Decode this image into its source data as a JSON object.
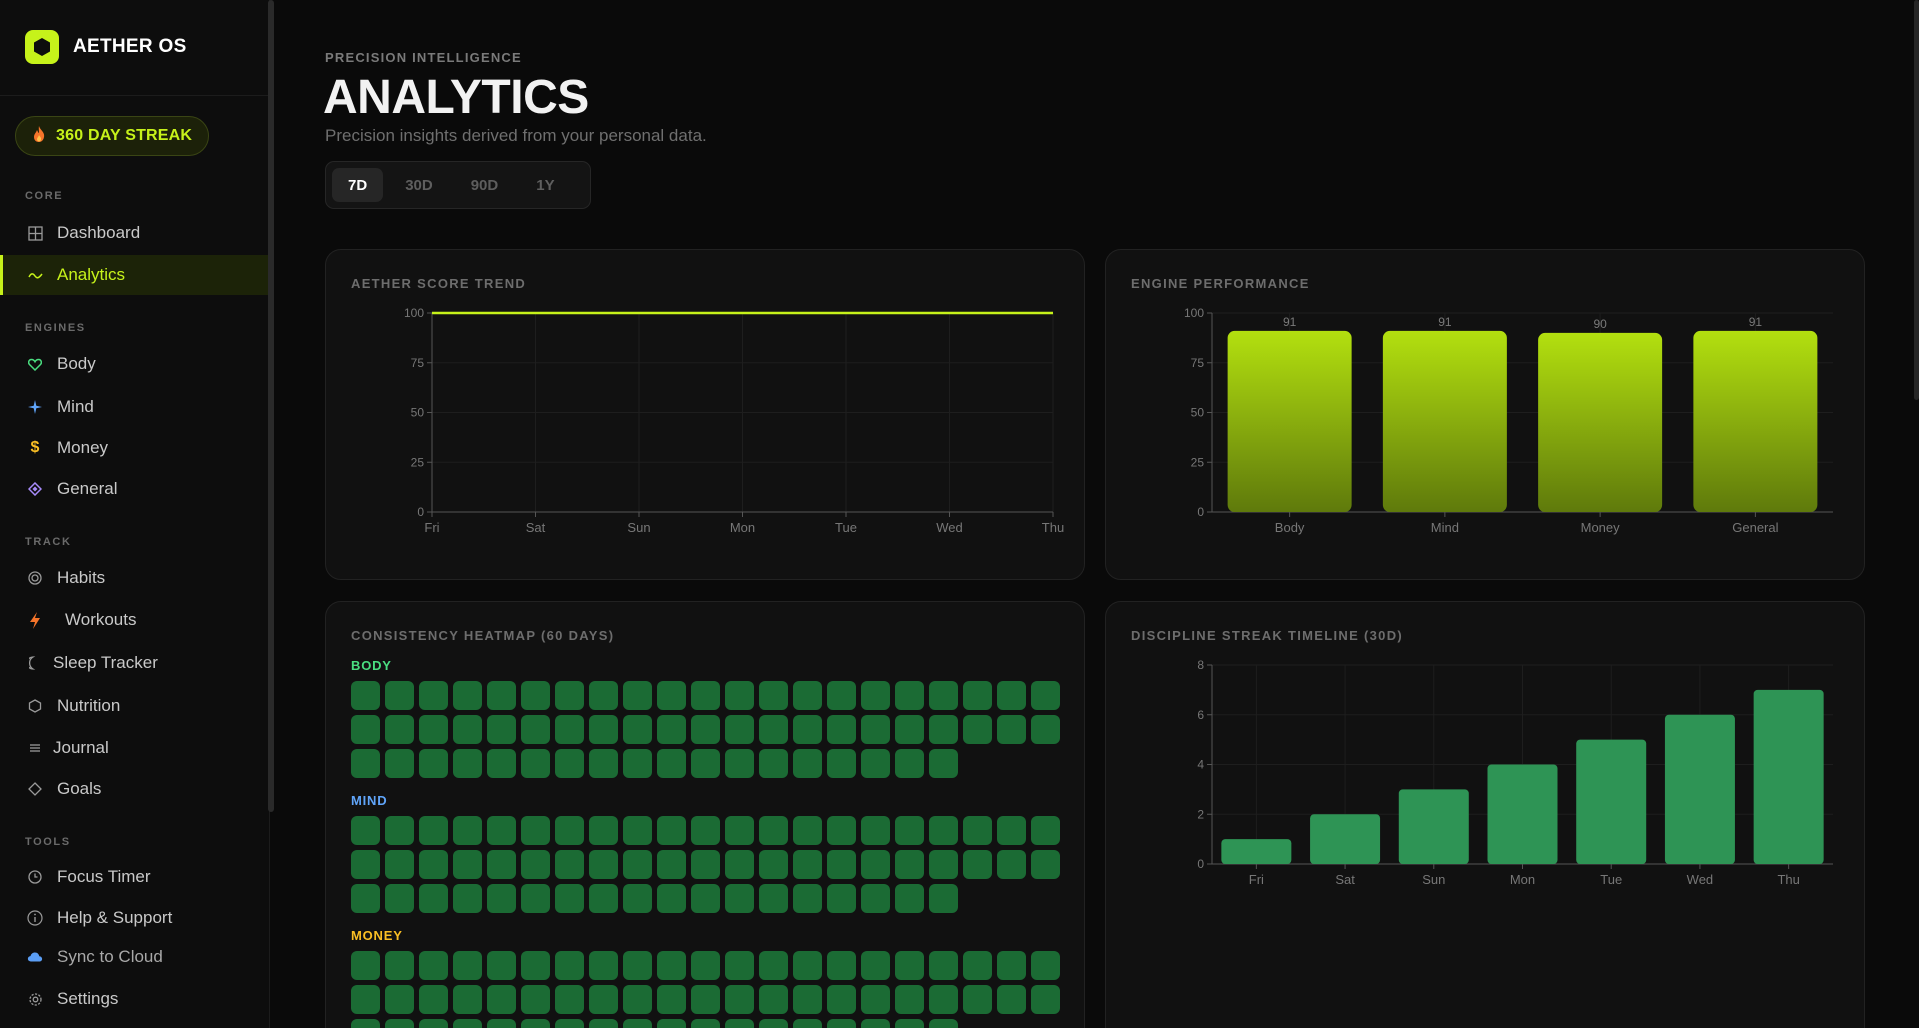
{
  "brand": {
    "name": "AETHER OS",
    "accent": "#c6f21a"
  },
  "streak": {
    "label": "360 DAY STREAK",
    "icon": "flame-icon"
  },
  "sidebar": {
    "sections": [
      {
        "label": "CORE"
      },
      {
        "label": "ENGINES"
      },
      {
        "label": "TRACK"
      },
      {
        "label": "TOOLS"
      }
    ],
    "items": [
      {
        "label": "Dashboard",
        "icon": "grid-icon"
      },
      {
        "label": "Analytics",
        "icon": "trend-icon",
        "active": true
      },
      {
        "label": "Body",
        "icon": "heart-icon"
      },
      {
        "label": "Mind",
        "icon": "sparkle-icon"
      },
      {
        "label": "Money",
        "icon": "dollar-icon"
      },
      {
        "label": "General",
        "icon": "diamond-icon"
      },
      {
        "label": "Habits",
        "icon": "target-icon"
      },
      {
        "label": "Workouts",
        "icon": "bolt-icon"
      },
      {
        "label": "Sleep Tracker",
        "icon": "moon-icon"
      },
      {
        "label": "Nutrition",
        "icon": "hexagon-icon"
      },
      {
        "label": "Journal",
        "icon": "lines-icon"
      },
      {
        "label": "Goals",
        "icon": "diamond-outline-icon"
      },
      {
        "label": "Focus Timer",
        "icon": "clock-icon"
      },
      {
        "label": "Help & Support",
        "icon": "info-icon"
      },
      {
        "label": "Sync to Cloud",
        "icon": "cloud-icon"
      },
      {
        "label": "Settings",
        "icon": "gear-icon"
      }
    ]
  },
  "header": {
    "eyebrow": "PRECISION INTELLIGENCE",
    "title": "ANALYTICS",
    "subtitle": "Precision insights derived from your personal data."
  },
  "range_tabs": [
    {
      "label": "7D",
      "active": true
    },
    {
      "label": "30D"
    },
    {
      "label": "90D"
    },
    {
      "label": "1Y"
    }
  ],
  "cards": {
    "score_trend": {
      "title": "AETHER SCORE TREND"
    },
    "engine_perf": {
      "title": "ENGINE PERFORMANCE"
    },
    "heatmap": {
      "title": "CONSISTENCY HEATMAP (60 DAYS)"
    },
    "streak_timeline": {
      "title": "DISCIPLINE STREAK TIMELINE (30D)"
    }
  },
  "heatmap_rows": [
    {
      "label": "BODY",
      "color": "#4ade80",
      "days": 60
    },
    {
      "label": "MIND",
      "color": "#60a5fa",
      "days": 60
    },
    {
      "label": "MONEY",
      "color": "#fbbf24",
      "days": 60
    }
  ],
  "chart_data": [
    {
      "type": "line",
      "title": "AETHER SCORE TREND",
      "x": [
        "Fri",
        "Sat",
        "Sun",
        "Mon",
        "Tue",
        "Wed",
        "Thu"
      ],
      "series": [
        {
          "values": [
            100,
            100,
            100,
            100,
            100,
            100,
            100
          ],
          "color": "#c6f21a"
        }
      ],
      "yticks": [
        0,
        25,
        50,
        75,
        100
      ],
      "ylim": [
        0,
        100
      ],
      "grid": true
    },
    {
      "type": "bar",
      "title": "ENGINE PERFORMANCE",
      "categories": [
        "Body",
        "Mind",
        "Money",
        "General"
      ],
      "values": [
        91,
        91,
        90,
        91
      ],
      "yticks": [
        0,
        25,
        50,
        75,
        100
      ],
      "ylim": [
        0,
        100
      ],
      "color": "#b3e00f",
      "grid": true
    },
    {
      "type": "bar",
      "title": "DISCIPLINE STREAK TIMELINE (30D)",
      "categories": [
        "Fri",
        "Sat",
        "Sun",
        "Mon",
        "Tue",
        "Wed",
        "Thu"
      ],
      "values": [
        1,
        2,
        3,
        4,
        5,
        6,
        7
      ],
      "yticks": [
        0,
        2,
        4,
        6,
        8
      ],
      "ylim": [
        0,
        8
      ],
      "color": "#2e9455",
      "grid": true
    }
  ]
}
